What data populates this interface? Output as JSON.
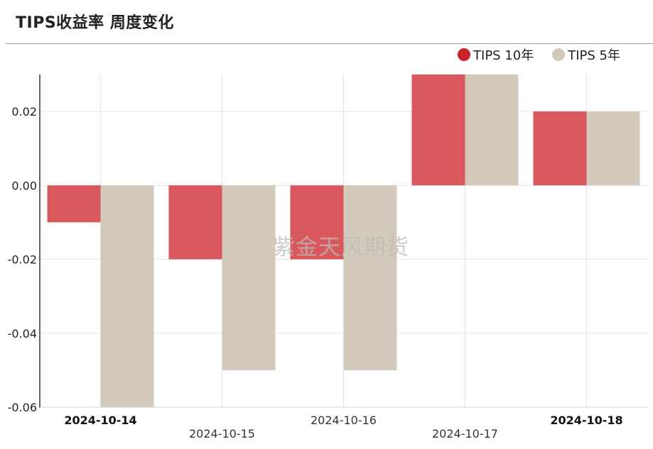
{
  "title": "TIPS收益率 周度变化",
  "watermark": "紫金天风期货",
  "colors": {
    "tips10": "#d9585e",
    "tips10_dot": "#cc2229",
    "tips5": "#d4cabb",
    "tips5_dot": "#d4cabb"
  },
  "chart_data": {
    "type": "bar",
    "categories": [
      "2024-10-14",
      "2024-10-15",
      "2024-10-16",
      "2024-10-17",
      "2024-10-18"
    ],
    "series": [
      {
        "name": "TIPS 10年",
        "values": [
          -0.01,
          -0.02,
          -0.02,
          0.03,
          0.02
        ]
      },
      {
        "name": "TIPS 5年",
        "values": [
          -0.06,
          -0.05,
          -0.05,
          0.03,
          0.02
        ]
      }
    ],
    "yticks": [
      "0.02",
      "0.00",
      "-0.02",
      "-0.04",
      "-0.06"
    ],
    "ytick_values": [
      0.02,
      0.0,
      -0.02,
      -0.04,
      -0.06
    ],
    "ylim": [
      -0.06,
      0.03
    ],
    "legend_position": "top-right",
    "grid": true
  }
}
